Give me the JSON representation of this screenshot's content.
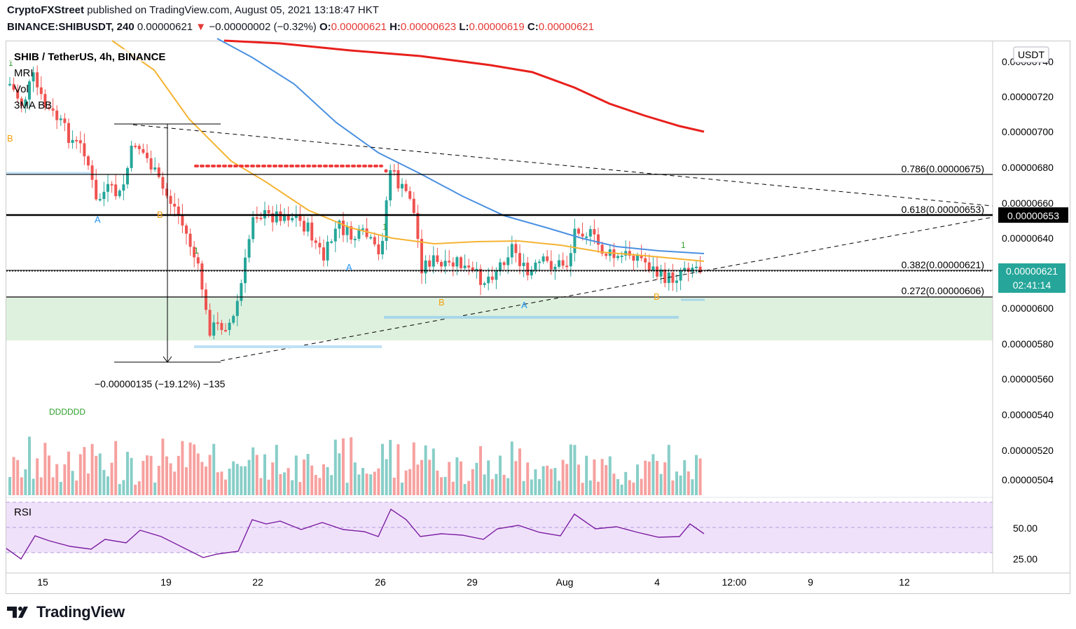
{
  "header": {
    "publisher": "CryptoFXStreet",
    "published_text": "published on TradingView.com, August 05, 2021 13:18:47 HKT",
    "symbol": "BINANCE:SHIBUSDT, 240",
    "last": "0.00000621",
    "change_arrow": "▼",
    "change": "−0.00000002 (−0.32%)",
    "o_label": "O:",
    "o": "0.00000621",
    "h_label": "H:",
    "h": "0.00000623",
    "l_label": "L:",
    "l": "0.00000619",
    "c_label": "C:",
    "c": "0.00000621"
  },
  "legend": {
    "title": "SHIB / TetherUS, 4h, BINANCE",
    "items": [
      "MRI",
      "Vol",
      "3MA BB"
    ]
  },
  "footer": {
    "brand": "TradingView",
    "logo_icon": "tradingview-logo-icon"
  },
  "price_axis": {
    "currency": "USDT",
    "ticks": [
      "0.00000740",
      "0.00000720",
      "0.00000700",
      "0.00000680",
      "0.00000660",
      "0.00000640",
      "0.00000620",
      "0.00000600",
      "0.00000580",
      "0.00000560",
      "0.00000540",
      "0.00000520",
      "0.00000504"
    ],
    "current_price": "0.00000621",
    "countdown": "02:41:14",
    "level_tag": "0.00000653"
  },
  "time_axis": {
    "ticks": [
      "15",
      "19",
      "22",
      "26",
      "29",
      "Aug",
      "4",
      "12:00",
      "9",
      "12"
    ]
  },
  "rsi": {
    "label": "RSI",
    "ticks": [
      "50.00",
      "25.00"
    ]
  },
  "fib_levels": [
    {
      "label": "0.786(0.00000675)",
      "value": 6.75e-06
    },
    {
      "label": "0.618(0.00000653)",
      "value": 6.53e-06
    },
    {
      "label": "0.382(0.00000621)",
      "value": 6.21e-06
    },
    {
      "label": "0.272(0.00000606)",
      "value": 6.06e-06
    }
  ],
  "annotations": {
    "measure_text": "−0.00000135 (−19.12%) −135",
    "dots_text": "DDDDDD",
    "pattern_labels": [
      "A",
      "B",
      "A",
      "A",
      "B",
      "A",
      "B",
      "1",
      "1",
      "1",
      "1",
      "B"
    ]
  },
  "colors": {
    "up": "#26a69a",
    "down": "#ef5350",
    "ma_red": "#e8201c",
    "ma_blue": "#4a90e2",
    "ma_orange": "#f5b333",
    "support_zone": "#d8efd8",
    "rsi_bg": "#f0e1fb",
    "rsi_line": "#7b1fa2"
  },
  "chart_data": {
    "type": "candlestick",
    "title": "SHIB / TetherUS, 4h, BINANCE",
    "ylim": [
      5e-06,
      7.45e-06
    ],
    "series": [
      {
        "name": "Vol"
      },
      {
        "name": "RSI"
      }
    ]
  }
}
